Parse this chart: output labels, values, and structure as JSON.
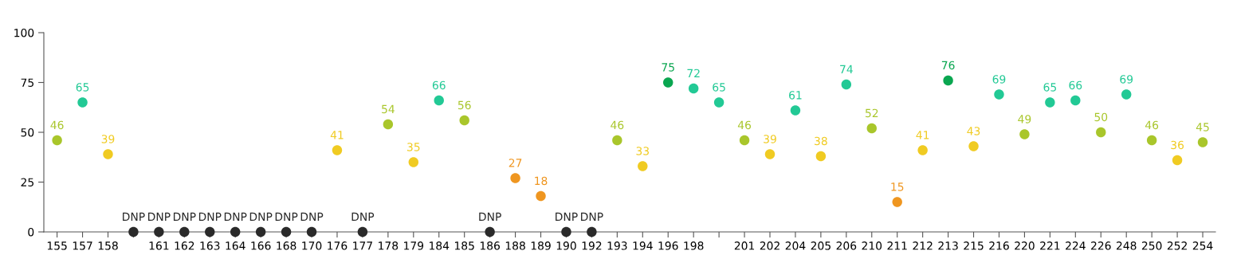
{
  "chart_data": {
    "type": "scatter",
    "categories": [
      "155",
      "157",
      "158",
      null,
      "161",
      "162",
      "163",
      "164",
      "166",
      "168",
      "170",
      "176",
      "177",
      "178",
      "179",
      "184",
      "185",
      "186",
      "188",
      "189",
      "190",
      "192",
      "193",
      "194",
      "196",
      "198",
      null,
      "201",
      "202",
      "204",
      "205",
      "206",
      "210",
      "211",
      "212",
      "213",
      "215",
      "216",
      "220",
      "221",
      "224",
      "226",
      "248",
      "250",
      "252",
      "254"
    ],
    "values": [
      46,
      65,
      39,
      0,
      0,
      0,
      0,
      0,
      0,
      0,
      0,
      41,
      0,
      54,
      35,
      66,
      56,
      0,
      27,
      18,
      0,
      0,
      46,
      33,
      75,
      72,
      65,
      46,
      39,
      61,
      38,
      74,
      52,
      15,
      41,
      76,
      43,
      69,
      49,
      65,
      66,
      50,
      69,
      46,
      36,
      45
    ],
    "value_labels": [
      "46",
      "65",
      "39",
      "DNP",
      "DNP",
      "DNP",
      "DNP",
      "DNP",
      "DNP",
      "DNP",
      "DNP",
      "41",
      "DNP",
      "54",
      "35",
      "66",
      "56",
      "DNP",
      "27",
      "18",
      "DNP",
      "DNP",
      "46",
      "33",
      "75",
      "72",
      "65",
      "46",
      "39",
      "61",
      "38",
      "74",
      "52",
      "15",
      "41",
      "76",
      "43",
      "69",
      "49",
      "65",
      "66",
      "50",
      "69",
      "46",
      "36",
      "45"
    ],
    "colors": [
      "#a9c62b",
      "#22c995",
      "#f0cb22",
      "#2a2a2a",
      "#2a2a2a",
      "#2a2a2a",
      "#2a2a2a",
      "#2a2a2a",
      "#2a2a2a",
      "#2a2a2a",
      "#2a2a2a",
      "#f0cb22",
      "#2a2a2a",
      "#a9c62b",
      "#f0cb22",
      "#22c995",
      "#a9c62b",
      "#2a2a2a",
      "#ef9620",
      "#ef9620",
      "#2a2a2a",
      "#2a2a2a",
      "#a9c62b",
      "#f0cb22",
      "#0aa650",
      "#22c995",
      "#22c995",
      "#a9c62b",
      "#f0cb22",
      "#22c995",
      "#f0cb22",
      "#22c995",
      "#a9c62b",
      "#ef9620",
      "#f0cb22",
      "#0aa650",
      "#f0cb22",
      "#22c995",
      "#a9c62b",
      "#22c995",
      "#22c995",
      "#a9c62b",
      "#22c995",
      "#a9c62b",
      "#f0cb22",
      "#a9c62b"
    ],
    "ylim": [
      0,
      100
    ],
    "yticks": [
      0,
      25,
      50,
      75,
      100
    ],
    "grid": false,
    "marker": "circle"
  }
}
